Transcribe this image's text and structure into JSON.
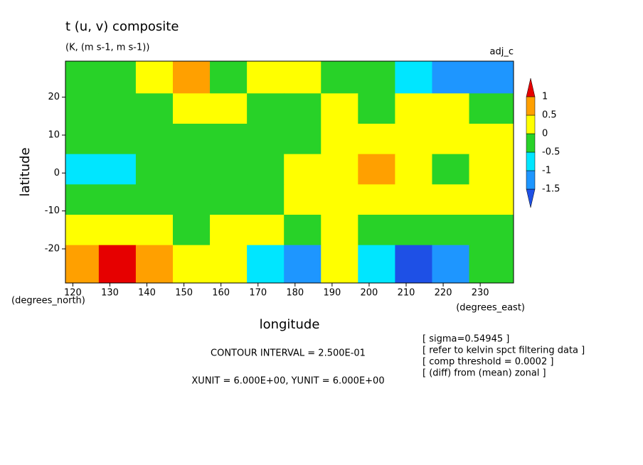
{
  "chart_data": {
    "type": "heatmap",
    "title": "t (u, v) composite",
    "subtitle": "(K, (m s-1, m s-1))",
    "annotation": "adj_c",
    "xlabel": "longitude",
    "ylabel": "latitude",
    "ylabel_units": "(degrees_north)",
    "xlabel_units": "(degrees_east)",
    "contour_interval": "CONTOUR INTERVAL = 2.500E-01",
    "units_note": "XUNIT = 6.000E+00, YUNIT = 6.000E+00",
    "notes": [
      "[ sigma=0.54945 ]",
      "[ refer to kelvin spct filtering data ]",
      "[ comp threshold = 0.0002 ]",
      "[ (diff) from (mean) zonal ]"
    ],
    "xlim": [
      118,
      239
    ],
    "ylim": [
      -29,
      29.5
    ],
    "xticks": [
      120,
      130,
      140,
      150,
      160,
      170,
      180,
      190,
      200,
      210,
      220,
      230
    ],
    "yticks": [
      20,
      10,
      0,
      -10,
      -20
    ],
    "x": [
      122,
      132,
      142,
      152,
      162,
      172,
      182,
      192,
      202,
      212,
      222,
      232
    ],
    "y": [
      25,
      17,
      9,
      1,
      -7,
      -15,
      -23
    ],
    "z": [
      [
        -0.3,
        -0.3,
        0.3,
        0.6,
        -0.2,
        0.2,
        0.2,
        -0.3,
        -0.3,
        -0.6,
        -1.1,
        -1.2
      ],
      [
        -0.2,
        -0.3,
        -0.2,
        0.2,
        0.2,
        -0.2,
        -0.3,
        0.2,
        -0.3,
        0.3,
        0.2,
        -0.3
      ],
      [
        -0.3,
        -0.3,
        -0.3,
        -0.3,
        -0.2,
        -0.2,
        -0.3,
        0.2,
        0.2,
        0.2,
        0.2,
        0.3
      ],
      [
        -0.7,
        -0.6,
        -0.3,
        -0.3,
        -0.3,
        -0.3,
        0.2,
        0.3,
        0.6,
        0.2,
        -0.3,
        0.2
      ],
      [
        -0.3,
        -0.3,
        -0.3,
        -0.3,
        -0.2,
        -0.2,
        0.2,
        0.2,
        0.3,
        0.2,
        0.2,
        0.3
      ],
      [
        0.2,
        0.2,
        0.2,
        -0.3,
        0.2,
        0.2,
        -0.3,
        0.2,
        -0.3,
        -0.4,
        -0.3,
        -0.3
      ],
      [
        0.7,
        1.2,
        0.6,
        0.2,
        0.2,
        -0.6,
        -1.3,
        0.2,
        -0.7,
        -1.6,
        -1.1,
        -0.3
      ]
    ],
    "colorbar": {
      "levels": [
        -1.5,
        -1,
        -0.5,
        0,
        0.5,
        1
      ],
      "colors": [
        "#1e50e6",
        "#1e96ff",
        "#00e6ff",
        "#28d228",
        "#ffff00",
        "#ffa000",
        "#e60000"
      ]
    }
  }
}
